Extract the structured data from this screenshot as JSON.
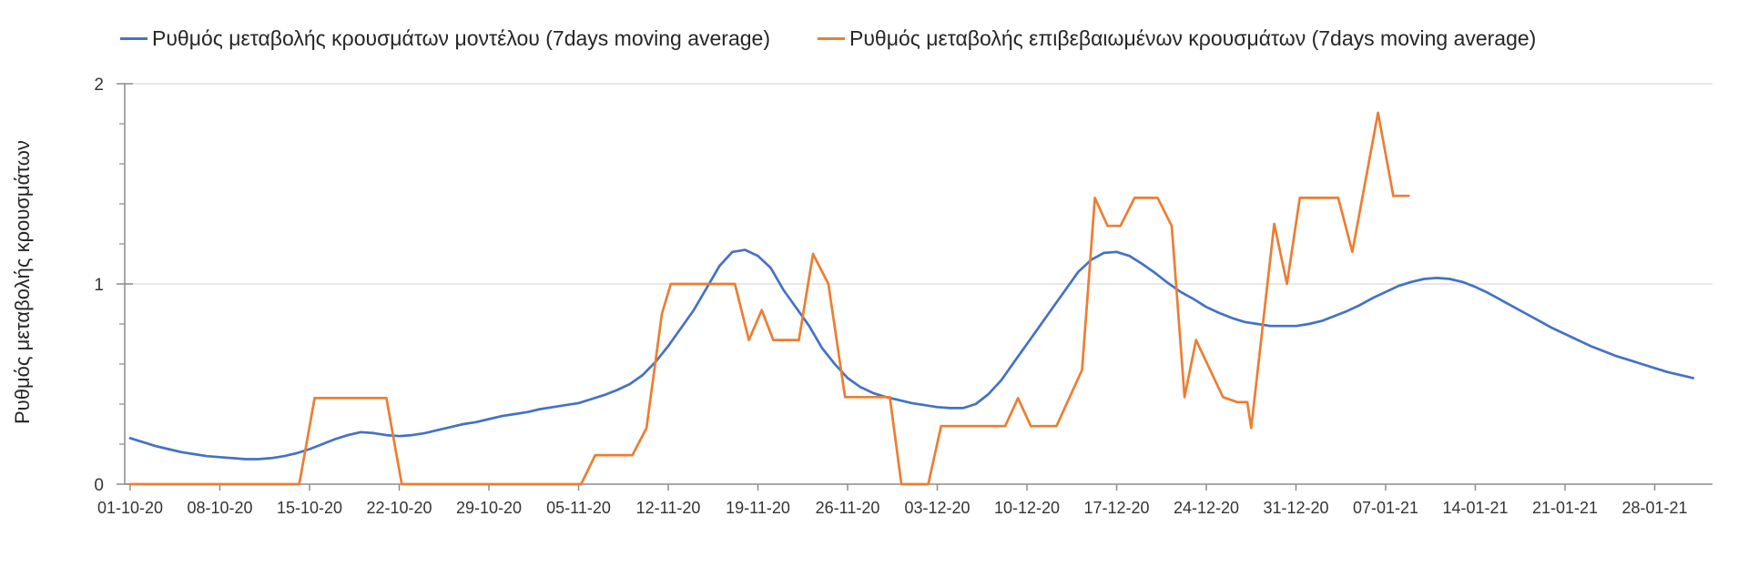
{
  "colors": {
    "model_line": "#4472C4",
    "confirmed_line": "#ED7D31",
    "gridline": "#D9D9D9",
    "axis": "#8C8C8C",
    "text": "#262626"
  },
  "chart_data": {
    "type": "line",
    "title": "",
    "ylabel": "Ρυθμός μεταβολής κρουσμάτων",
    "xlabel": "",
    "ylim": [
      0,
      2
    ],
    "y_tick_labels": [
      "0",
      "1",
      "2"
    ],
    "y_tick_values": [
      0,
      1,
      2
    ],
    "y_minor_step": 0.2,
    "grid": "horizontal gridlines at y=1 and y=2",
    "legend_position": "top",
    "x_start_date": "01-10-20",
    "x_tick_interval_days": 7,
    "x_tick_labels": [
      "01-10-20",
      "08-10-20",
      "15-10-20",
      "22-10-20",
      "29-10-20",
      "05-11-20",
      "12-11-20",
      "19-11-20",
      "26-11-20",
      "03-12-20",
      "10-12-20",
      "17-12-20",
      "24-12-20",
      "31-12-20",
      "07-01-21",
      "14-01-21",
      "21-01-21",
      "28-01-21"
    ],
    "series": [
      {
        "name": "Ρυθμός μεταβολής κρουσμάτων μοντέλου (7days moving average)",
        "color": "#4472C4",
        "sampling": "daily values, day 0 = 01-10-20",
        "values": [
          0.23,
          0.21,
          0.19,
          0.175,
          0.16,
          0.15,
          0.14,
          0.135,
          0.13,
          0.125,
          0.125,
          0.13,
          0.14,
          0.155,
          0.175,
          0.2,
          0.225,
          0.245,
          0.26,
          0.255,
          0.245,
          0.24,
          0.245,
          0.255,
          0.27,
          0.285,
          0.3,
          0.31,
          0.325,
          0.34,
          0.35,
          0.36,
          0.375,
          0.385,
          0.395,
          0.405,
          0.425,
          0.445,
          0.47,
          0.5,
          0.545,
          0.61,
          0.69,
          0.78,
          0.87,
          0.98,
          1.09,
          1.16,
          1.17,
          1.14,
          1.08,
          0.97,
          0.88,
          0.79,
          0.68,
          0.6,
          0.53,
          0.485,
          0.455,
          0.435,
          0.42,
          0.405,
          0.395,
          0.385,
          0.38,
          0.38,
          0.4,
          0.45,
          0.52,
          0.61,
          0.7,
          0.79,
          0.88,
          0.97,
          1.06,
          1.12,
          1.155,
          1.16,
          1.14,
          1.1,
          1.055,
          1.005,
          0.96,
          0.925,
          0.885,
          0.855,
          0.83,
          0.81,
          0.8,
          0.79,
          0.79,
          0.79,
          0.8,
          0.815,
          0.84,
          0.865,
          0.895,
          0.93,
          0.96,
          0.99,
          1.01,
          1.025,
          1.03,
          1.025,
          1.01,
          0.985,
          0.955,
          0.92,
          0.885,
          0.85,
          0.815,
          0.78,
          0.75,
          0.72,
          0.69,
          0.665,
          0.64,
          0.62,
          0.6,
          0.58,
          0.56,
          0.545,
          0.53
        ]
      },
      {
        "name": "Ρυθμός μεταβολής επιβεβαιωμένων κρουσμάτων (7days moving average)",
        "color": "#ED7D31",
        "sampling": "vertex points [day, value], day 0 = 01-10-20",
        "points": [
          [
            0,
            0
          ],
          [
            13.2,
            0
          ],
          [
            14.4,
            0.43
          ],
          [
            20,
            0.43
          ],
          [
            21.2,
            0
          ],
          [
            35.2,
            0
          ],
          [
            36.3,
            0.145
          ],
          [
            39.2,
            0.145
          ],
          [
            40.3,
            0.28
          ],
          [
            41.5,
            0.85
          ],
          [
            42.2,
            1
          ],
          [
            47.2,
            1
          ],
          [
            48.3,
            0.72
          ],
          [
            49.3,
            0.87
          ],
          [
            50.2,
            0.72
          ],
          [
            52.2,
            0.72
          ],
          [
            53.3,
            1.15
          ],
          [
            54.5,
            1
          ],
          [
            55.8,
            0.435
          ],
          [
            59.3,
            0.435
          ],
          [
            60.2,
            0
          ],
          [
            62.3,
            0
          ],
          [
            63.3,
            0.29
          ],
          [
            68.3,
            0.29
          ],
          [
            69.3,
            0.43
          ],
          [
            70.3,
            0.29
          ],
          [
            72.3,
            0.29
          ],
          [
            74.3,
            0.57
          ],
          [
            75.3,
            1.43
          ],
          [
            76.3,
            1.29
          ],
          [
            77.3,
            1.29
          ],
          [
            78.4,
            1.43
          ],
          [
            80.2,
            1.43
          ],
          [
            81.3,
            1.29
          ],
          [
            82.3,
            0.435
          ],
          [
            83.2,
            0.72
          ],
          [
            85.3,
            0.435
          ],
          [
            86.4,
            0.41
          ],
          [
            87.2,
            0.41
          ],
          [
            87.5,
            0.28
          ],
          [
            89.3,
            1.3
          ],
          [
            90.3,
            1
          ],
          [
            91.3,
            1.43
          ],
          [
            94.3,
            1.43
          ],
          [
            95.4,
            1.16
          ],
          [
            97.4,
            1.855
          ],
          [
            98.6,
            1.44
          ],
          [
            99.8,
            1.44
          ]
        ]
      }
    ]
  }
}
